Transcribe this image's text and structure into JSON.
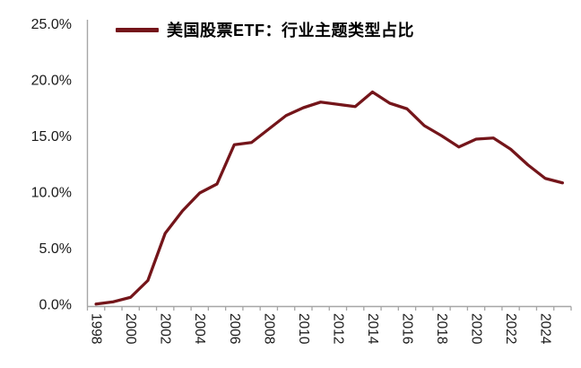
{
  "legend": {
    "label": "美国股票ETF：行业主题类型占比"
  },
  "colors": {
    "line": "#74151a",
    "axis": "#a6a6a6",
    "tick_text": "#1a1a1a",
    "background": "#ffffff"
  },
  "chart_data": {
    "type": "line",
    "title": "",
    "xlabel": "",
    "ylabel": "",
    "grid": false,
    "legend_position": "top-left",
    "legend_entries": [
      "美国股票ETF：行业主题类型占比"
    ],
    "x": [
      1998,
      1999,
      2000,
      2001,
      2002,
      2003,
      2004,
      2005,
      2006,
      2007,
      2008,
      2009,
      2010,
      2011,
      2012,
      2013,
      2014,
      2015,
      2016,
      2017,
      2018,
      2019,
      2020,
      2021,
      2022,
      2023,
      2024,
      2025
    ],
    "series": [
      {
        "name": "美国股票ETF：行业主题类型占比",
        "values": [
          0.1,
          0.3,
          0.7,
          2.2,
          6.4,
          8.4,
          10.0,
          10.8,
          14.3,
          14.5,
          15.7,
          16.9,
          17.6,
          18.1,
          17.9,
          17.7,
          19.0,
          18.0,
          17.5,
          16.0,
          15.1,
          14.1,
          14.8,
          14.9,
          13.9,
          12.5,
          11.3,
          10.9
        ]
      }
    ],
    "ylim": [
      0,
      25
    ],
    "ytick_values": [
      0,
      5,
      10,
      15,
      20,
      25
    ],
    "ytick_labels": [
      "0.0%",
      "5.0%",
      "10.0%",
      "15.0%",
      "20.0%",
      "25.0%"
    ],
    "xtick_label_years": [
      "1998",
      "2000",
      "2002",
      "2004",
      "2006",
      "2008",
      "2010",
      "2012",
      "2014",
      "2016",
      "2018",
      "2020",
      "2022",
      "2024"
    ]
  }
}
